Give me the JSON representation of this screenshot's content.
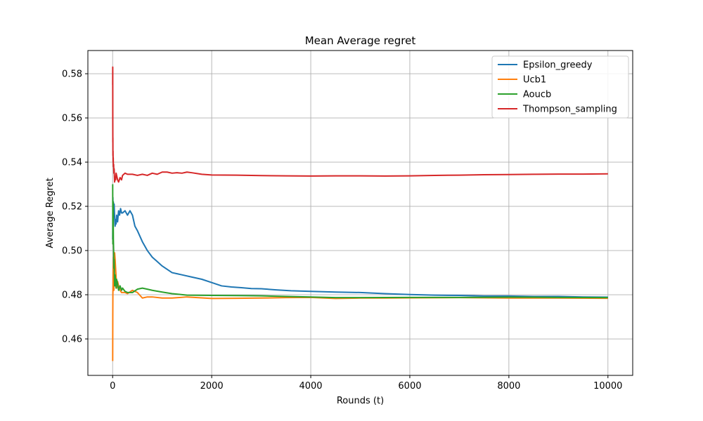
{
  "chart_data": {
    "type": "line",
    "title": "Mean Average regret",
    "xlabel": "Rounds (t)",
    "ylabel": "Average Regret",
    "xlim": [
      -500,
      10500
    ],
    "ylim": [
      0.4435,
      0.5905
    ],
    "xticks": [
      0,
      2000,
      4000,
      6000,
      8000,
      10000
    ],
    "xtick_labels": [
      "0",
      "2000",
      "4000",
      "6000",
      "8000",
      "10000"
    ],
    "yticks": [
      0.46,
      0.48,
      0.5,
      0.52,
      0.54,
      0.56,
      0.58
    ],
    "ytick_labels": [
      "0.46",
      "0.48",
      "0.50",
      "0.52",
      "0.54",
      "0.56",
      "0.58"
    ],
    "grid": true,
    "legend_position": "top-right",
    "series": [
      {
        "name": "Epsilon_greedy",
        "color": "#1f77b4",
        "x": [
          1,
          5,
          10,
          15,
          20,
          30,
          40,
          50,
          60,
          70,
          80,
          100,
          120,
          140,
          160,
          180,
          200,
          250,
          300,
          350,
          400,
          450,
          500,
          600,
          700,
          800,
          900,
          1000,
          1200,
          1400,
          1600,
          1800,
          2000,
          2200,
          2400,
          2600,
          2800,
          3000,
          3300,
          3600,
          4000,
          4500,
          5000,
          5500,
          6000,
          6500,
          7000,
          7500,
          8000,
          8500,
          9000,
          9500,
          10000
        ],
        "y": [
          0.505,
          0.524,
          0.516,
          0.522,
          0.518,
          0.521,
          0.515,
          0.511,
          0.514,
          0.512,
          0.516,
          0.513,
          0.518,
          0.516,
          0.519,
          0.517,
          0.517,
          0.518,
          0.516,
          0.518,
          0.516,
          0.511,
          0.509,
          0.504,
          0.5,
          0.497,
          0.495,
          0.493,
          0.49,
          0.489,
          0.488,
          0.487,
          0.4855,
          0.484,
          0.4835,
          0.4832,
          0.4828,
          0.4827,
          0.4822,
          0.4818,
          0.4815,
          0.4812,
          0.481,
          0.4805,
          0.4801,
          0.4798,
          0.4797,
          0.4794,
          0.4794,
          0.4792,
          0.4792,
          0.479,
          0.4789
        ]
      },
      {
        "name": "Ucb1",
        "color": "#ff7f0e",
        "x": [
          1,
          3,
          5,
          8,
          10,
          15,
          20,
          25,
          30,
          40,
          50,
          60,
          70,
          80,
          100,
          120,
          150,
          180,
          200,
          250,
          300,
          400,
          500,
          600,
          700,
          800,
          1000,
          1200,
          1500,
          2000,
          2500,
          3000,
          3500,
          4000,
          4500,
          5000,
          5500,
          6000,
          7000,
          8000,
          9000,
          10000
        ],
        "y": [
          0.45,
          0.471,
          0.48,
          0.485,
          0.49,
          0.493,
          0.497,
          0.482,
          0.487,
          0.499,
          0.496,
          0.492,
          0.488,
          0.483,
          0.486,
          0.484,
          0.482,
          0.481,
          0.481,
          0.481,
          0.4805,
          0.482,
          0.481,
          0.4785,
          0.479,
          0.479,
          0.4785,
          0.4785,
          0.479,
          0.4783,
          0.4784,
          0.4785,
          0.4787,
          0.4788,
          0.4783,
          0.4785,
          0.4785,
          0.4786,
          0.4787,
          0.4785,
          0.4785,
          0.4784
        ]
      },
      {
        "name": "Aoucb",
        "color": "#2ca02c",
        "x": [
          1,
          3,
          5,
          8,
          10,
          15,
          20,
          25,
          30,
          40,
          50,
          60,
          70,
          80,
          100,
          120,
          150,
          180,
          200,
          250,
          300,
          400,
          500,
          600,
          700,
          800,
          1000,
          1200,
          1500,
          2000,
          2500,
          3000,
          3500,
          4000,
          4500,
          5000,
          6000,
          7000,
          8000,
          9000,
          10000
        ],
        "y": [
          0.53,
          0.514,
          0.503,
          0.51,
          0.522,
          0.505,
          0.5,
          0.492,
          0.496,
          0.484,
          0.489,
          0.486,
          0.483,
          0.487,
          0.485,
          0.482,
          0.484,
          0.482,
          0.483,
          0.4815,
          0.481,
          0.481,
          0.4825,
          0.483,
          0.4825,
          0.482,
          0.4812,
          0.4805,
          0.4798,
          0.4797,
          0.4796,
          0.4795,
          0.4792,
          0.479,
          0.4787,
          0.4787,
          0.4788,
          0.4788,
          0.4789,
          0.4788,
          0.4787
        ]
      },
      {
        "name": "Thompson_sampling",
        "color": "#d62728",
        "x": [
          1,
          2,
          3,
          4,
          5,
          6,
          8,
          10,
          12,
          15,
          20,
          25,
          30,
          40,
          50,
          60,
          70,
          80,
          100,
          120,
          150,
          180,
          200,
          250,
          300,
          400,
          500,
          600,
          700,
          800,
          900,
          1000,
          1100,
          1200,
          1300,
          1400,
          1500,
          1600,
          1800,
          2000,
          2500,
          3000,
          3500,
          4000,
          4500,
          5000,
          5500,
          6000,
          6500,
          7000,
          7500,
          8000,
          8500,
          9000,
          9500,
          10000
        ],
        "y": [
          0.575,
          0.583,
          0.558,
          0.549,
          0.551,
          0.543,
          0.545,
          0.54,
          0.542,
          0.538,
          0.539,
          0.535,
          0.537,
          0.531,
          0.533,
          0.532,
          0.535,
          0.534,
          0.532,
          0.531,
          0.533,
          0.532,
          0.534,
          0.535,
          0.5345,
          0.5345,
          0.534,
          0.5345,
          0.534,
          0.535,
          0.5345,
          0.5355,
          0.5355,
          0.535,
          0.5352,
          0.535,
          0.5355,
          0.5352,
          0.5345,
          0.5342,
          0.5341,
          0.5339,
          0.5338,
          0.5337,
          0.5338,
          0.5338,
          0.5337,
          0.5338,
          0.534,
          0.5341,
          0.5343,
          0.5344,
          0.5345,
          0.5346,
          0.5346,
          0.5347
        ]
      }
    ]
  }
}
